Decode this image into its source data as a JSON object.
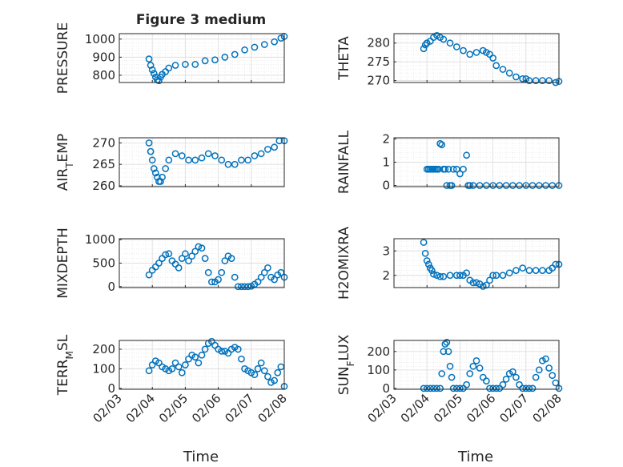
{
  "figure": {
    "title": "Figure 3 medium",
    "xlabel": "Time"
  },
  "colors": {
    "marker": "#0072BD",
    "grid": "#dedede",
    "axis": "#262626"
  },
  "chart_data": [
    {
      "type": "scatter",
      "ylabel": "PRESSURE",
      "ylabel_sub": "",
      "ylabel_tail": "",
      "ylim": [
        760,
        1030
      ],
      "yticks": [
        800,
        900,
        1000
      ],
      "yticklabels": [
        "800",
        "900",
        "1000"
      ],
      "x": [
        0.9,
        0.95,
        1.0,
        1.05,
        1.1,
        1.15,
        1.2,
        1.25,
        1.3,
        1.4,
        1.5,
        1.7,
        2.0,
        2.3,
        2.6,
        2.9,
        3.2,
        3.5,
        3.8,
        4.1,
        4.4,
        4.7,
        4.9,
        5.0
      ],
      "y": [
        890,
        855,
        830,
        810,
        790,
        775,
        770,
        790,
        805,
        820,
        840,
        855,
        860,
        860,
        880,
        885,
        900,
        915,
        940,
        955,
        970,
        985,
        1005,
        1015
      ]
    },
    {
      "type": "scatter",
      "ylabel": "THETA",
      "ylabel_sub": "",
      "ylabel_tail": "",
      "ylim": [
        269.5,
        282.5
      ],
      "yticks": [
        270,
        275,
        280
      ],
      "yticklabels": [
        "270",
        "275",
        "280"
      ],
      "x": [
        0.9,
        0.95,
        1.0,
        1.1,
        1.2,
        1.3,
        1.4,
        1.5,
        1.7,
        1.9,
        2.1,
        2.3,
        2.5,
        2.7,
        2.8,
        2.9,
        3.0,
        3.1,
        3.3,
        3.5,
        3.7,
        3.9,
        4.0,
        4.1,
        4.3,
        4.5,
        4.7,
        4.9,
        5.0
      ],
      "y": [
        278.5,
        279.5,
        280,
        280.5,
        281.5,
        282,
        281.5,
        281,
        280,
        279,
        278,
        277,
        277.5,
        278,
        277.5,
        277,
        276,
        274,
        273,
        272,
        271,
        270.5,
        270.5,
        270,
        270,
        270,
        270,
        269.5,
        269.8
      ]
    },
    {
      "type": "scatter",
      "ylabel": "AIR",
      "ylabel_sub": "T",
      "ylabel_tail": "EMP",
      "ylim": [
        259.8,
        271.2
      ],
      "yticks": [
        260,
        265,
        270
      ],
      "yticklabels": [
        "260",
        "265",
        "270"
      ],
      "x": [
        0.9,
        0.95,
        1.0,
        1.05,
        1.1,
        1.15,
        1.2,
        1.25,
        1.3,
        1.4,
        1.5,
        1.7,
        1.9,
        2.1,
        2.3,
        2.5,
        2.7,
        2.9,
        3.1,
        3.3,
        3.5,
        3.7,
        3.9,
        4.1,
        4.3,
        4.5,
        4.7,
        4.85,
        5.0
      ],
      "y": [
        270,
        268,
        266,
        264,
        263,
        262,
        261,
        261,
        262,
        264,
        266,
        267.5,
        267,
        266,
        266,
        266.5,
        267.5,
        267,
        266,
        265,
        265,
        266,
        266,
        267,
        267.5,
        268.5,
        269,
        270.5,
        270.5
      ]
    },
    {
      "type": "scatter",
      "ylabel": "RAINFALL",
      "ylabel_sub": "",
      "ylabel_tail": "",
      "ylim": [
        -0.05,
        2.05
      ],
      "yticks": [
        0,
        1,
        2
      ],
      "yticklabels": [
        "0",
        "1",
        "2"
      ],
      "x": [
        1.0,
        1.05,
        1.1,
        1.15,
        1.2,
        1.25,
        1.3,
        1.35,
        1.4,
        1.45,
        1.5,
        1.55,
        1.6,
        1.65,
        1.7,
        1.75,
        1.8,
        1.9,
        2.0,
        2.1,
        2.2,
        2.25,
        2.3,
        2.4,
        2.6,
        2.8,
        3.0,
        3.2,
        3.4,
        3.6,
        3.8,
        4.0,
        4.2,
        4.4,
        4.6,
        4.8,
        5.0
      ],
      "y": [
        0.7,
        0.7,
        0.7,
        0.7,
        0.7,
        0.7,
        0.7,
        0.7,
        1.8,
        1.75,
        0.7,
        0.7,
        0,
        0.7,
        0,
        0,
        0.7,
        0.7,
        0.5,
        0.7,
        1.3,
        0,
        0,
        0,
        0,
        0,
        0,
        0,
        0,
        0,
        0,
        0,
        0,
        0,
        0,
        0,
        0
      ]
    },
    {
      "type": "scatter",
      "ylabel": "MIXDEPTH",
      "ylabel_sub": "",
      "ylabel_tail": "",
      "ylim": [
        -20,
        1020
      ],
      "yticks": [
        0,
        500,
        1000
      ],
      "yticklabels": [
        "0",
        "500",
        "1000"
      ],
      "x": [
        0.9,
        1.0,
        1.1,
        1.2,
        1.3,
        1.4,
        1.5,
        1.6,
        1.7,
        1.8,
        1.9,
        2.0,
        2.1,
        2.2,
        2.3,
        2.4,
        2.5,
        2.6,
        2.7,
        2.8,
        2.9,
        3.0,
        3.1,
        3.2,
        3.3,
        3.4,
        3.5,
        3.6,
        3.7,
        3.8,
        3.9,
        4.0,
        4.1,
        4.2,
        4.3,
        4.4,
        4.5,
        4.6,
        4.7,
        4.8,
        4.9,
        5.0
      ],
      "y": [
        250,
        350,
        420,
        500,
        600,
        680,
        700,
        550,
        480,
        400,
        600,
        700,
        550,
        650,
        750,
        850,
        820,
        600,
        300,
        100,
        100,
        150,
        300,
        550,
        650,
        600,
        200,
        0,
        0,
        0,
        0,
        10,
        50,
        100,
        200,
        300,
        400,
        200,
        150,
        250,
        300,
        200
      ]
    },
    {
      "type": "scatter",
      "ylabel": "H2OMIXRA",
      "ylabel_sub": "",
      "ylabel_tail": "",
      "ylim": [
        1.5,
        3.5
      ],
      "yticks": [
        2,
        3
      ],
      "yticklabels": [
        "2",
        "3"
      ],
      "x": [
        0.9,
        0.95,
        1.0,
        1.05,
        1.1,
        1.15,
        1.2,
        1.3,
        1.4,
        1.5,
        1.7,
        1.9,
        2.0,
        2.1,
        2.2,
        2.3,
        2.4,
        2.5,
        2.6,
        2.7,
        2.8,
        2.9,
        3.0,
        3.1,
        3.3,
        3.5,
        3.7,
        3.9,
        4.1,
        4.3,
        4.5,
        4.7,
        4.8,
        4.9,
        5.0
      ],
      "y": [
        3.35,
        2.9,
        2.6,
        2.45,
        2.3,
        2.2,
        2.05,
        2.0,
        1.95,
        1.95,
        2.0,
        2.0,
        2.0,
        2.0,
        2.1,
        1.8,
        1.7,
        1.7,
        1.65,
        1.55,
        1.6,
        1.8,
        2.0,
        2.0,
        2.0,
        2.1,
        2.2,
        2.3,
        2.2,
        2.2,
        2.2,
        2.2,
        2.3,
        2.45,
        2.45
      ]
    },
    {
      "type": "scatter",
      "ylabel": "TERR",
      "ylabel_sub": "M",
      "ylabel_tail": "SL",
      "ylim": [
        -5,
        245
      ],
      "yticks": [
        0,
        100,
        200
      ],
      "yticklabels": [
        "0",
        "100",
        "200"
      ],
      "x": [
        0.9,
        1.0,
        1.1,
        1.2,
        1.3,
        1.4,
        1.5,
        1.6,
        1.7,
        1.8,
        1.9,
        2.0,
        2.1,
        2.2,
        2.3,
        2.4,
        2.5,
        2.6,
        2.7,
        2.8,
        2.9,
        3.0,
        3.1,
        3.2,
        3.3,
        3.4,
        3.5,
        3.6,
        3.7,
        3.8,
        3.9,
        4.0,
        4.1,
        4.2,
        4.3,
        4.4,
        4.5,
        4.6,
        4.7,
        4.8,
        4.9,
        5.0
      ],
      "y": [
        90,
        120,
        140,
        130,
        110,
        100,
        90,
        100,
        130,
        110,
        80,
        120,
        150,
        170,
        160,
        130,
        170,
        200,
        230,
        240,
        220,
        200,
        190,
        190,
        180,
        200,
        210,
        200,
        150,
        100,
        90,
        80,
        70,
        100,
        130,
        90,
        60,
        30,
        40,
        80,
        110,
        10
      ]
    },
    {
      "type": "scatter",
      "ylabel": "SUN",
      "ylabel_sub": "F",
      "ylabel_tail": "LUX",
      "ylim": [
        -5,
        260
      ],
      "yticks": [
        0,
        100,
        200
      ],
      "yticklabels": [
        "0",
        "100",
        "200"
      ],
      "x": [
        0.9,
        1.0,
        1.1,
        1.2,
        1.3,
        1.4,
        1.45,
        1.5,
        1.55,
        1.6,
        1.65,
        1.7,
        1.75,
        1.8,
        1.9,
        2.0,
        2.1,
        2.2,
        2.3,
        2.4,
        2.5,
        2.6,
        2.7,
        2.8,
        2.9,
        3.0,
        3.1,
        3.2,
        3.3,
        3.4,
        3.5,
        3.6,
        3.7,
        3.8,
        3.9,
        4.0,
        4.1,
        4.2,
        4.3,
        4.4,
        4.5,
        4.6,
        4.7,
        4.8,
        4.9,
        5.0
      ],
      "y": [
        0,
        0,
        0,
        0,
        0,
        0,
        80,
        200,
        240,
        250,
        200,
        120,
        60,
        0,
        0,
        0,
        0,
        20,
        80,
        120,
        150,
        110,
        60,
        40,
        0,
        0,
        0,
        0,
        20,
        50,
        80,
        90,
        60,
        20,
        0,
        0,
        0,
        0,
        60,
        100,
        150,
        160,
        110,
        70,
        30,
        0
      ]
    }
  ],
  "xaxis": {
    "xlim": [
      0,
      5
    ],
    "xticks": [
      0,
      1,
      2,
      3,
      4,
      5
    ],
    "xticklabels": [
      "02/03",
      "02/04",
      "02/05",
      "02/06",
      "02/07",
      "02/08"
    ]
  }
}
